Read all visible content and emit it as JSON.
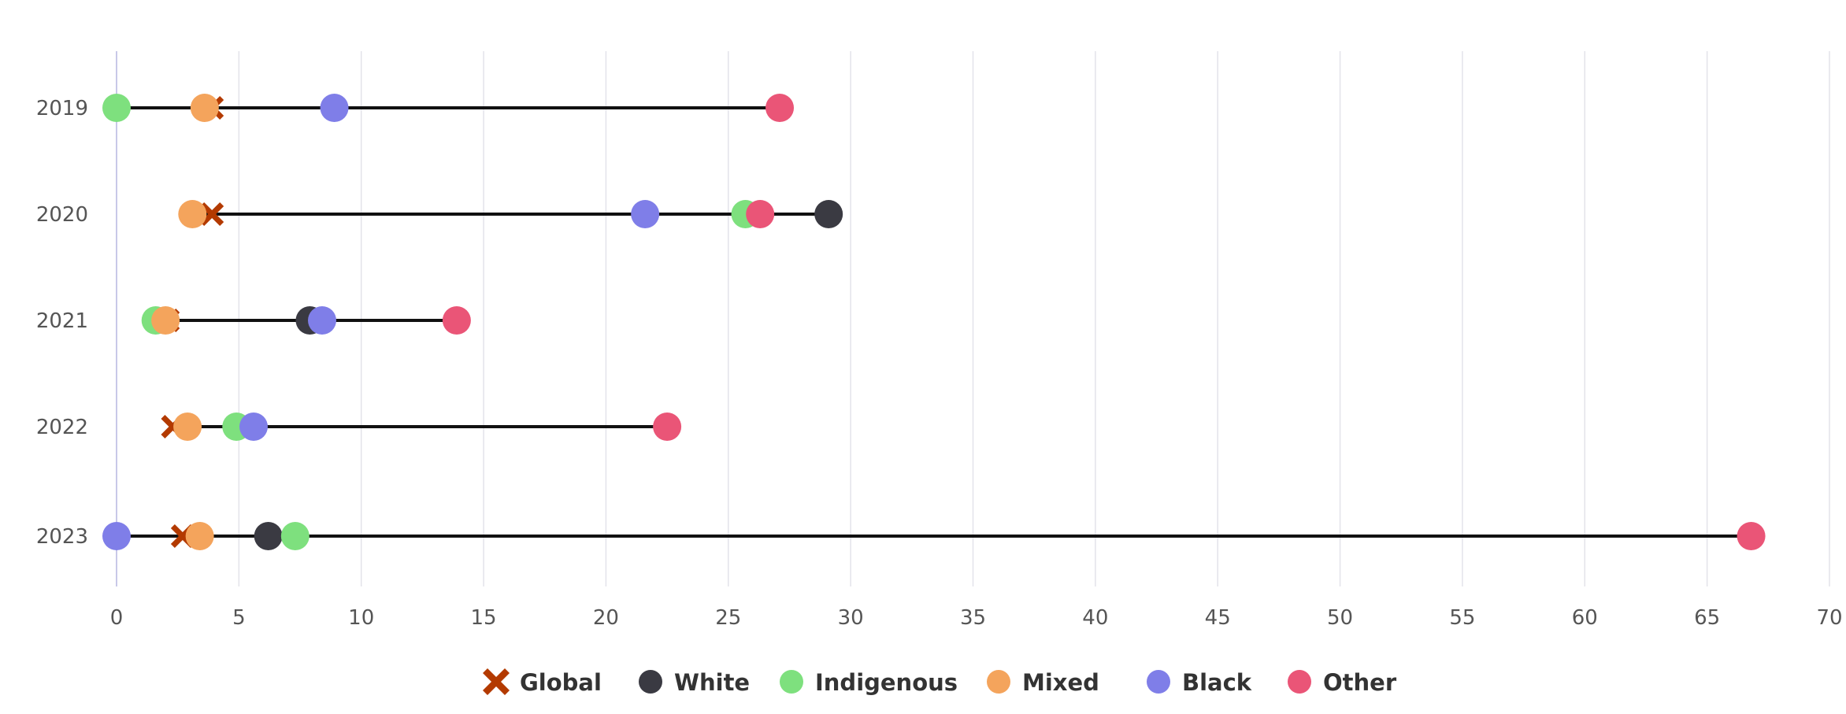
{
  "chart_data": {
    "type": "dumbbell",
    "title": "",
    "xlabel": "",
    "ylabel": "",
    "categories": [
      "2019",
      "2020",
      "2021",
      "2022",
      "2023"
    ],
    "xlim": [
      0,
      70
    ],
    "x_ticks": [
      0,
      5,
      10,
      15,
      20,
      25,
      30,
      35,
      40,
      45,
      50,
      55,
      60,
      65,
      70
    ],
    "grid": "vertical",
    "legend_position": "bottom",
    "series": [
      {
        "name": "Global",
        "marker": "cross",
        "color": "#b33a00",
        "values": [
          3.9,
          3.9,
          2.1,
          2.3,
          2.7
        ]
      },
      {
        "name": "White",
        "marker": "circle",
        "color": "#3a3a42",
        "values": [
          null,
          29.1,
          7.9,
          null,
          6.2
        ]
      },
      {
        "name": "Indigenous",
        "marker": "circle",
        "color": "#7ee07e",
        "values": [
          0,
          25.7,
          1.6,
          4.9,
          7.3
        ]
      },
      {
        "name": "Mixed",
        "marker": "circle",
        "color": "#f4a45c",
        "values": [
          3.6,
          3.1,
          2.0,
          2.9,
          3.4
        ]
      },
      {
        "name": "Black",
        "marker": "circle",
        "color": "#7f7ee8",
        "values": [
          8.9,
          21.6,
          8.4,
          5.6,
          0
        ]
      },
      {
        "name": "Other",
        "marker": "circle",
        "color": "#ea5577",
        "values": [
          27.1,
          26.3,
          13.9,
          22.5,
          66.8
        ]
      }
    ]
  }
}
